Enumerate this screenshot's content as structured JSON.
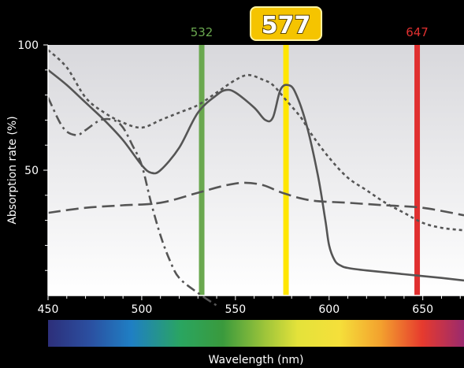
{
  "chart_data": {
    "type": "line",
    "xlabel": "Wavelength (nm)",
    "ylabel": "Absorption rate (%)",
    "xlim": [
      450,
      672
    ],
    "ylim": [
      0,
      100
    ],
    "x_ticks": [
      450,
      500,
      550,
      600,
      650
    ],
    "y_ticks": [
      50,
      100
    ],
    "grid": false,
    "colors": {
      "plot_bg_top": "#d8d8dc",
      "plot_bg_bottom": "#ffffff",
      "curve": "#555555",
      "badge_fill": "#f5c400"
    },
    "markers": [
      {
        "label": "532",
        "x": 532,
        "color": "#6aa84f"
      },
      {
        "label": "577",
        "x": 577,
        "color": "#ffe600",
        "highlight": true
      },
      {
        "label": "647",
        "x": 647,
        "color": "#e03030"
      }
    ],
    "series": [
      {
        "style": "solid",
        "x": [
          450,
          460,
          470,
          480,
          490,
          500,
          505,
          510,
          520,
          530,
          540,
          545,
          550,
          560,
          566,
          570,
          574,
          578,
          582,
          588,
          594,
          598,
          600,
          603,
          606,
          610,
          620,
          640,
          660,
          672
        ],
        "y": [
          90,
          84,
          77,
          70,
          62,
          52,
          49,
          50,
          59,
          73,
          80,
          82,
          81,
          75,
          70,
          71,
          82,
          84,
          81,
          68,
          48,
          30,
          20,
          14,
          12,
          11,
          10,
          8.5,
          7,
          6
        ]
      },
      {
        "style": "dotted",
        "x": [
          450,
          460,
          470,
          480,
          490,
          500,
          510,
          520,
          530,
          540,
          550,
          557,
          565,
          570,
          577,
          585,
          590,
          600,
          610,
          620,
          630,
          640,
          650,
          660,
          672
        ],
        "y": [
          98,
          91,
          79,
          73,
          69,
          67,
          70,
          73,
          76,
          81,
          86,
          88,
          86,
          84,
          78,
          71,
          65,
          55,
          47,
          42,
          37,
          33,
          29,
          27,
          26
        ]
      },
      {
        "style": "dashed",
        "x": [
          450,
          470,
          490,
          510,
          530,
          545,
          555,
          565,
          575,
          590,
          610,
          630,
          650,
          672
        ],
        "y": [
          33,
          35,
          36,
          37,
          41,
          44,
          45,
          44,
          41,
          38,
          37,
          36,
          35,
          32
        ]
      },
      {
        "style": "dash-dot",
        "x": [
          450,
          458,
          465,
          470,
          478,
          485,
          490,
          495,
          500,
          505,
          510,
          515,
          520,
          530,
          540
        ],
        "y": [
          79,
          67,
          64,
          66,
          70,
          70,
          67,
          60,
          52,
          37,
          24,
          14,
          7,
          1,
          -4
        ]
      }
    ]
  }
}
